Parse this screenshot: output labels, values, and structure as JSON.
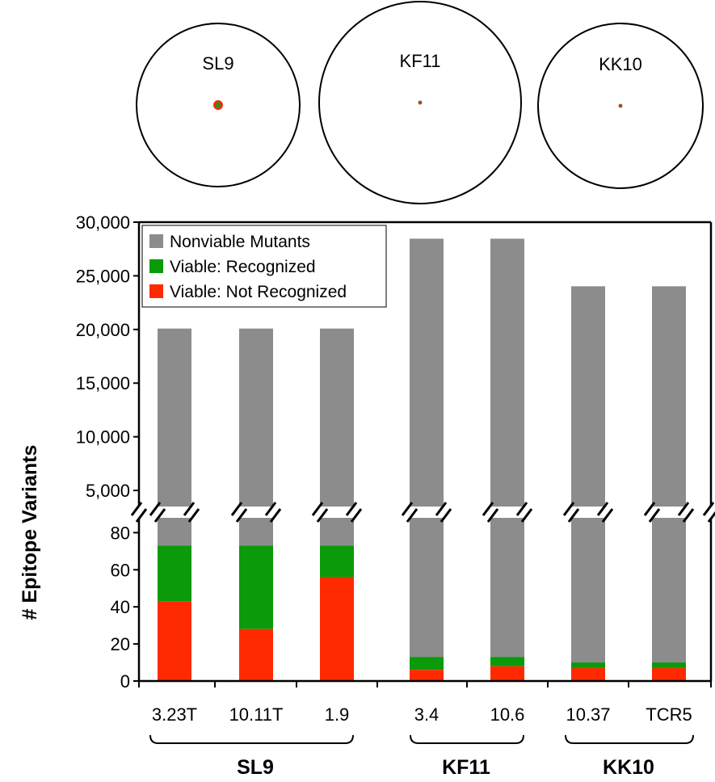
{
  "circles": [
    {
      "label": "SL9",
      "dot_color": "#2e8b2e",
      "ring_color": "#ff2a00"
    },
    {
      "label": "KF11",
      "dot_color": "#a0522d",
      "ring_color": "#a0522d"
    },
    {
      "label": "KK10",
      "dot_color": "#a0522d",
      "ring_color": "#a0522d"
    }
  ],
  "chart_data": {
    "type": "bar",
    "stacked": true,
    "broken_y_axis": true,
    "ylabel": "# Epitope Variants",
    "categories": [
      "3.23T",
      "10.11T",
      "1.9",
      "3.4",
      "10.6",
      "10.37",
      "TCR5"
    ],
    "groups": [
      {
        "label": "SL9",
        "categories": [
          "3.23T",
          "10.11T",
          "1.9"
        ]
      },
      {
        "label": "KF11",
        "categories": [
          "3.4",
          "10.6"
        ]
      },
      {
        "label": "KK10",
        "categories": [
          "10.37",
          "TCR5"
        ]
      }
    ],
    "series": [
      {
        "name": "Viable: Not Recognized",
        "color": "#ff2a00",
        "values": [
          43,
          28,
          56,
          6,
          8,
          7,
          7
        ]
      },
      {
        "name": "Viable: Recognized",
        "color": "#0a9a0a",
        "values": [
          30,
          45,
          17,
          7,
          5,
          3,
          3
        ]
      },
      {
        "name": "Nonviable Mutants",
        "color": "#8c8c8c",
        "values": [
          20013,
          20013,
          20013,
          28447,
          28447,
          24014,
          24014
        ]
      }
    ],
    "totals": [
      20086,
      20086,
      20086,
      28460,
      28460,
      24024,
      24024
    ],
    "lower_axis": {
      "ylim": [
        0,
        88
      ],
      "ticks": [
        "0",
        "20",
        "40",
        "60",
        "80"
      ],
      "tick_values": [
        0,
        20,
        40,
        60,
        80
      ]
    },
    "upper_axis": {
      "ylim": [
        3500,
        30000
      ],
      "ticks": [
        "5,000",
        "10,000",
        "15,000",
        "20,000",
        "25,000",
        "30,000"
      ],
      "tick_values": [
        5000,
        10000,
        15000,
        20000,
        25000,
        30000
      ]
    },
    "legend": {
      "placement": "top-left",
      "order": [
        "Nonviable Mutants",
        "Viable: Recognized",
        "Viable: Not Recognized"
      ]
    },
    "grid": false
  }
}
